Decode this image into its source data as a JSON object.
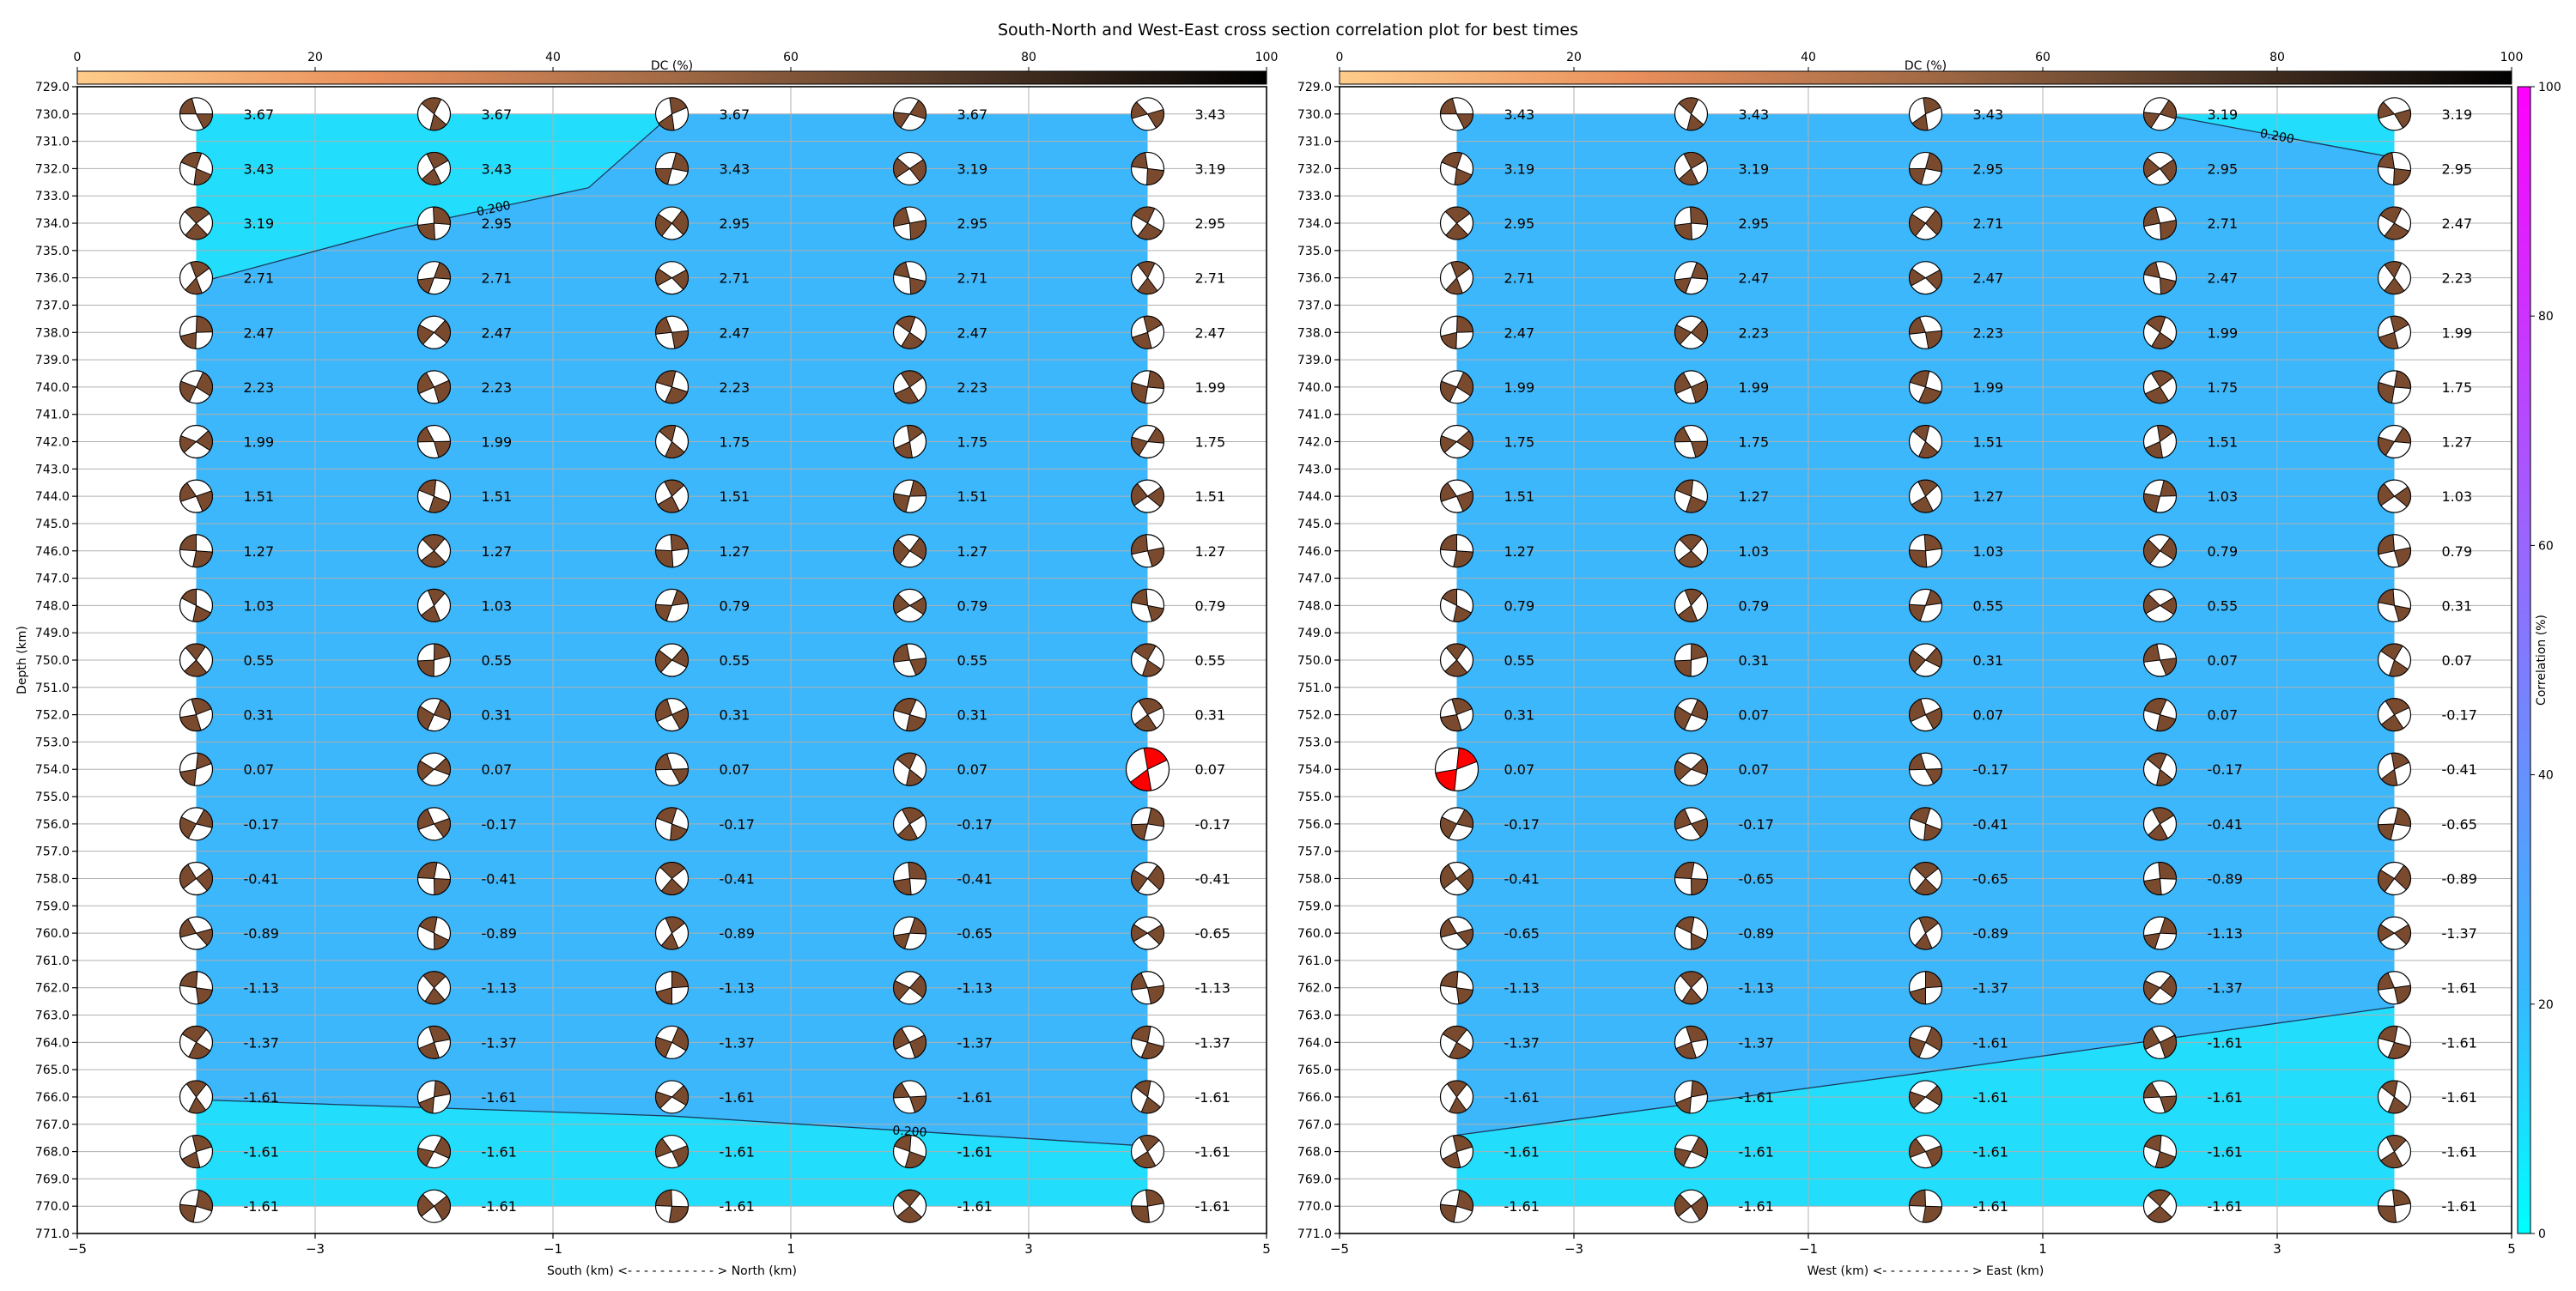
{
  "figure": {
    "title": "South-North and West-East cross section correlation plot for best times"
  },
  "colors": {
    "dc_cmap": [
      "#ffcc8a",
      "#e98f5c",
      "#a26a45",
      "#4e3626",
      "#000000"
    ],
    "correlation_cmap": [
      "#00ffff",
      "#ff00ff"
    ],
    "beach_fill": "#7a4a2e",
    "best_beach_fill": "#ff0000",
    "grid": "#b0b0b0"
  },
  "chart_data": [
    {
      "type": "heatmap",
      "panel": "south-north",
      "xlabel": "South (km) <- - - - - - - - - - - > North (km)",
      "ylabel": "Depth (km)",
      "xlim": [
        -5,
        5
      ],
      "ylim": [
        771,
        729
      ],
      "xticks": [
        "−5",
        "−3",
        "−1",
        "1",
        "3",
        "5"
      ],
      "yticks": [
        "729.0",
        "730.0",
        "731.0",
        "732.0",
        "733.0",
        "734.0",
        "735.0",
        "736.0",
        "737.0",
        "738.0",
        "739.0",
        "740.0",
        "741.0",
        "742.0",
        "743.0",
        "744.0",
        "745.0",
        "746.0",
        "747.0",
        "748.0",
        "749.0",
        "750.0",
        "751.0",
        "752.0",
        "753.0",
        "754.0",
        "755.0",
        "756.0",
        "757.0",
        "758.0",
        "759.0",
        "760.0",
        "761.0",
        "762.0",
        "763.0",
        "764.0",
        "765.0",
        "766.0",
        "767.0",
        "768.0",
        "769.0",
        "770.0",
        "771.0"
      ],
      "grid": true,
      "colorbar_top": {
        "label": "DC (%)",
        "ticks": [
          "0",
          "20",
          "40",
          "60",
          "80",
          "100"
        ],
        "range": [
          0,
          100
        ]
      },
      "x": [
        -4,
        -2,
        0,
        2,
        4
      ],
      "depths": [
        730,
        732,
        734,
        736,
        738,
        740,
        742,
        744,
        746,
        748,
        750,
        752,
        754,
        756,
        758,
        760,
        762,
        764,
        766,
        768,
        770
      ],
      "labels": [
        [
          "3.67",
          "3.67",
          "3.67",
          "3.67",
          "3.43"
        ],
        [
          "3.43",
          "3.43",
          "3.43",
          "3.19",
          "3.19"
        ],
        [
          "3.19",
          "2.95",
          "2.95",
          "2.95",
          "2.95"
        ],
        [
          "2.71",
          "2.71",
          "2.71",
          "2.71",
          "2.71"
        ],
        [
          "2.47",
          "2.47",
          "2.47",
          "2.47",
          "2.47"
        ],
        [
          "2.23",
          "2.23",
          "2.23",
          "2.23",
          "1.99"
        ],
        [
          "1.99",
          "1.99",
          "1.75",
          "1.75",
          "1.75"
        ],
        [
          "1.51",
          "1.51",
          "1.51",
          "1.51",
          "1.51"
        ],
        [
          "1.27",
          "1.27",
          "1.27",
          "1.27",
          "1.27"
        ],
        [
          "1.03",
          "1.03",
          "0.79",
          "0.79",
          "0.79"
        ],
        [
          "0.55",
          "0.55",
          "0.55",
          "0.55",
          "0.55"
        ],
        [
          "0.31",
          "0.31",
          "0.31",
          "0.31",
          "0.31"
        ],
        [
          "0.07",
          "0.07",
          "0.07",
          "0.07",
          "0.07"
        ],
        [
          "-0.17",
          "-0.17",
          "-0.17",
          "-0.17",
          "-0.17"
        ],
        [
          "-0.41",
          "-0.41",
          "-0.41",
          "-0.41",
          "-0.41"
        ],
        [
          "-0.89",
          "-0.89",
          "-0.89",
          "-0.65",
          "-0.65"
        ],
        [
          "-1.13",
          "-1.13",
          "-1.13",
          "-1.13",
          "-1.13"
        ],
        [
          "-1.37",
          "-1.37",
          "-1.37",
          "-1.37",
          "-1.37"
        ],
        [
          "-1.61",
          "-1.61",
          "-1.61",
          "-1.61",
          "-1.61"
        ],
        [
          "-1.61",
          "-1.61",
          "-1.61",
          "-1.61",
          "-1.61"
        ],
        [
          "-1.61",
          "-1.61",
          "-1.61",
          "-1.61",
          "-1.61"
        ]
      ],
      "best": {
        "x": 4,
        "depth": 754
      },
      "contours": [
        {
          "level": "0.200",
          "points": [
            [
              -4,
              736.2
            ],
            [
              -2.3,
              734.2
            ],
            [
              -0.7,
              732.7
            ],
            [
              0,
              730
            ]
          ]
        },
        {
          "level": "0.200",
          "points": [
            [
              -4,
              766.1
            ],
            [
              0,
              766.7
            ],
            [
              4,
              767.8
            ]
          ]
        }
      ]
    },
    {
      "type": "heatmap",
      "panel": "west-east",
      "xlabel": "West (km) <- - - - - - - - - - - > East (km)",
      "ylabel": "",
      "xlim": [
        -5,
        5
      ],
      "ylim": [
        771,
        729
      ],
      "xticks": [
        "−5",
        "−3",
        "−1",
        "1",
        "3",
        "5"
      ],
      "yticks": [
        "729.0",
        "730.0",
        "731.0",
        "732.0",
        "733.0",
        "734.0",
        "735.0",
        "736.0",
        "737.0",
        "738.0",
        "739.0",
        "740.0",
        "741.0",
        "742.0",
        "743.0",
        "744.0",
        "745.0",
        "746.0",
        "747.0",
        "748.0",
        "749.0",
        "750.0",
        "751.0",
        "752.0",
        "753.0",
        "754.0",
        "755.0",
        "756.0",
        "757.0",
        "758.0",
        "759.0",
        "760.0",
        "761.0",
        "762.0",
        "763.0",
        "764.0",
        "765.0",
        "766.0",
        "767.0",
        "768.0",
        "769.0",
        "770.0",
        "771.0"
      ],
      "grid": true,
      "colorbar_top": {
        "label": "DC (%)",
        "ticks": [
          "0",
          "20",
          "40",
          "60",
          "80",
          "100"
        ],
        "range": [
          0,
          100
        ]
      },
      "colorbar_right": {
        "label": "Correlation (%)",
        "ticks": [
          "0",
          "20",
          "40",
          "60",
          "80",
          "100"
        ],
        "range": [
          0,
          100
        ]
      },
      "x": [
        -4,
        -2,
        0,
        2,
        4
      ],
      "depths": [
        730,
        732,
        734,
        736,
        738,
        740,
        742,
        744,
        746,
        748,
        750,
        752,
        754,
        756,
        758,
        760,
        762,
        764,
        766,
        768,
        770
      ],
      "labels": [
        [
          "3.43",
          "3.43",
          "3.43",
          "3.19",
          "3.19"
        ],
        [
          "3.19",
          "3.19",
          "2.95",
          "2.95",
          "2.95"
        ],
        [
          "2.95",
          "2.95",
          "2.71",
          "2.71",
          "2.47"
        ],
        [
          "2.71",
          "2.47",
          "2.47",
          "2.47",
          "2.23"
        ],
        [
          "2.47",
          "2.23",
          "2.23",
          "1.99",
          "1.99"
        ],
        [
          "1.99",
          "1.99",
          "1.99",
          "1.75",
          "1.75"
        ],
        [
          "1.75",
          "1.75",
          "1.51",
          "1.51",
          "1.27"
        ],
        [
          "1.51",
          "1.27",
          "1.27",
          "1.03",
          "1.03"
        ],
        [
          "1.27",
          "1.03",
          "1.03",
          "0.79",
          "0.79"
        ],
        [
          "0.79",
          "0.79",
          "0.55",
          "0.55",
          "0.31"
        ],
        [
          "0.55",
          "0.31",
          "0.31",
          "0.07",
          "0.07"
        ],
        [
          "0.31",
          "0.07",
          "0.07",
          "0.07",
          "-0.17"
        ],
        [
          "0.07",
          "0.07",
          "-0.17",
          "-0.17",
          "-0.41"
        ],
        [
          "-0.17",
          "-0.17",
          "-0.41",
          "-0.41",
          "-0.65"
        ],
        [
          "-0.41",
          "-0.65",
          "-0.65",
          "-0.89",
          "-0.89"
        ],
        [
          "-0.65",
          "-0.89",
          "-0.89",
          "-1.13",
          "-1.37"
        ],
        [
          "-1.13",
          "-1.13",
          "-1.37",
          "-1.37",
          "-1.61"
        ],
        [
          "-1.37",
          "-1.37",
          "-1.61",
          "-1.61",
          "-1.61"
        ],
        [
          "-1.61",
          "-1.61",
          "-1.61",
          "-1.61",
          "-1.61"
        ],
        [
          "-1.61",
          "-1.61",
          "-1.61",
          "-1.61",
          "-1.61"
        ],
        [
          "-1.61",
          "-1.61",
          "-1.61",
          "-1.61",
          "-1.61"
        ]
      ],
      "best": {
        "x": -4,
        "depth": 754
      },
      "contours": [
        {
          "level": "0.200",
          "points": [
            [
              -4,
              767.4
            ],
            [
              0,
              765.1
            ],
            [
              4,
              762.7
            ]
          ]
        },
        {
          "level": "0.200",
          "points": [
            [
              2,
              730
            ],
            [
              4,
              731.6
            ]
          ]
        }
      ]
    }
  ]
}
